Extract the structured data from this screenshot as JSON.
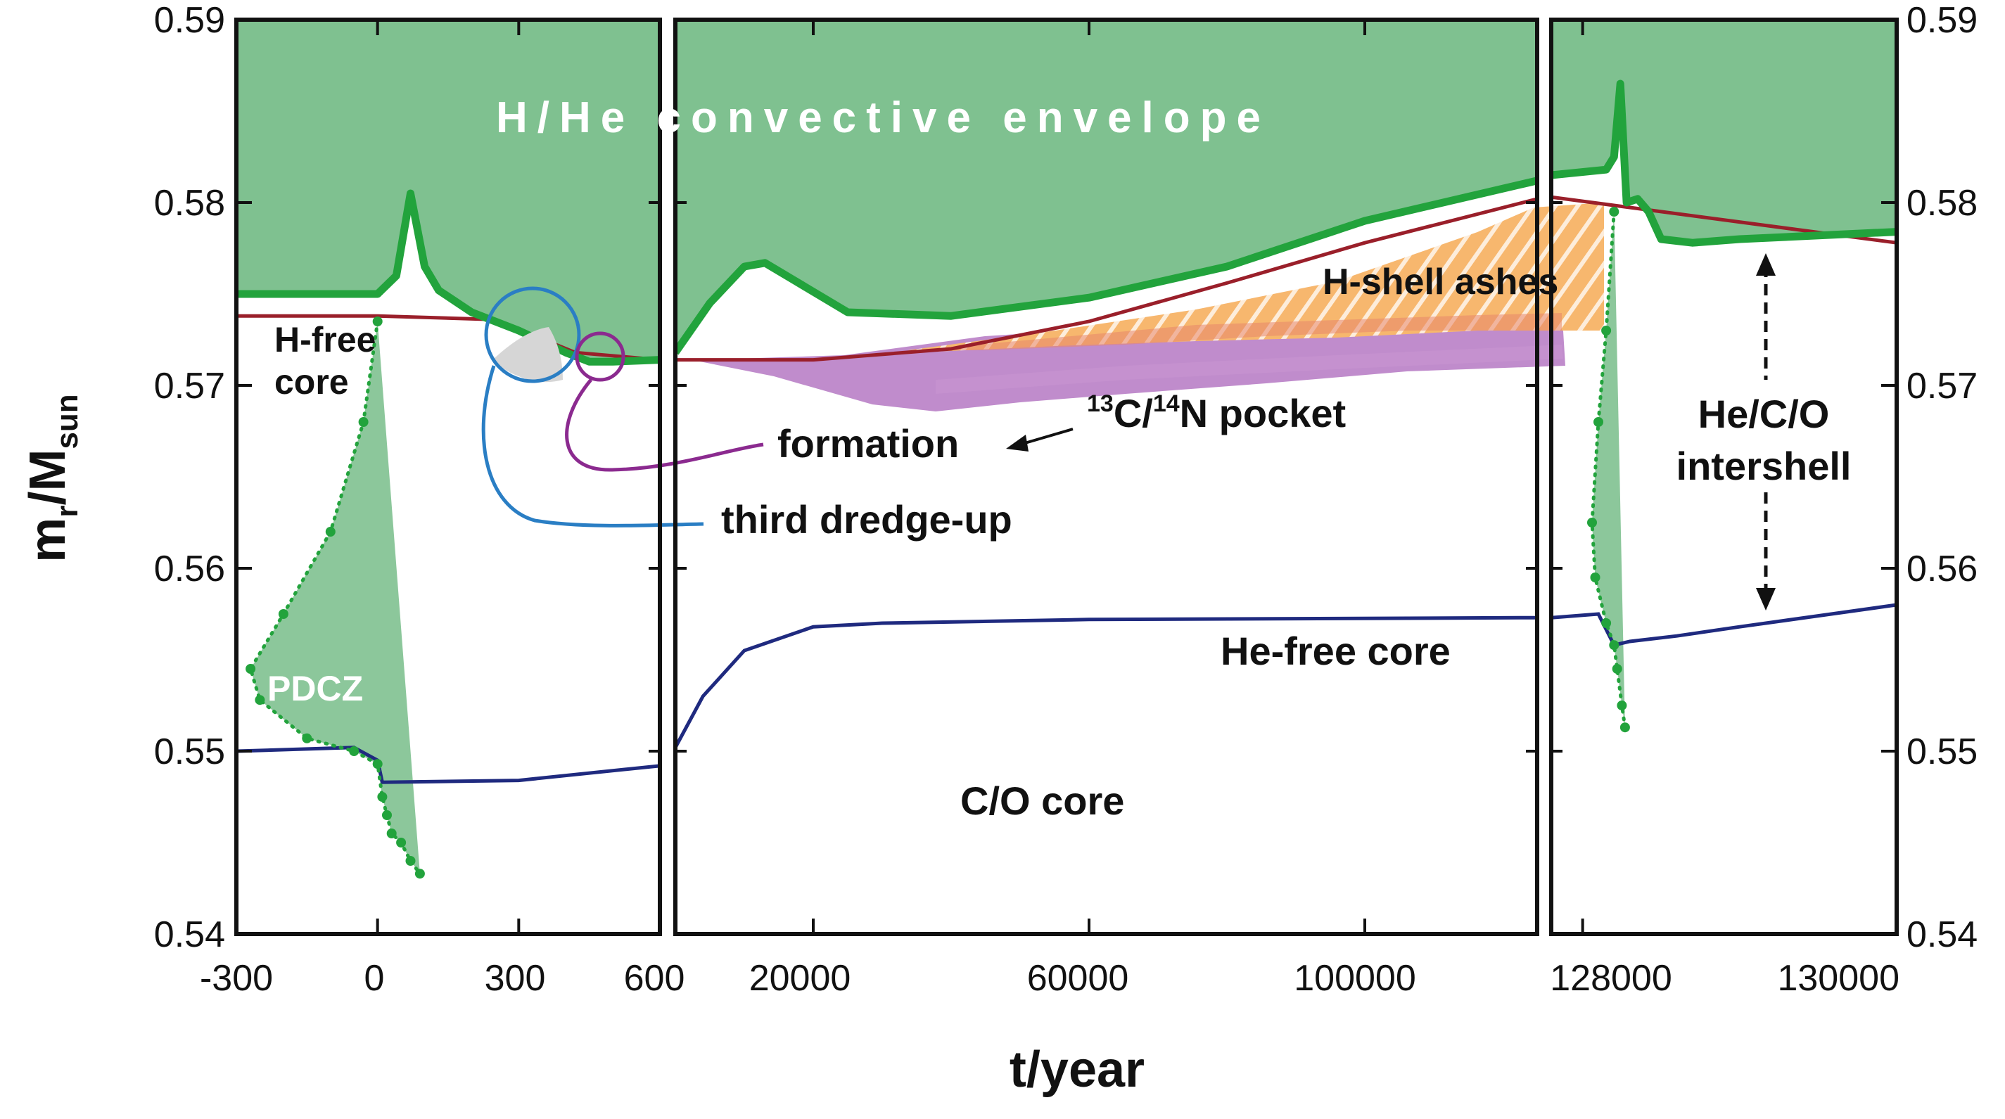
{
  "chart_data": {
    "type": "line",
    "xlabel": "t/year",
    "ylabel_main": "m",
    "ylabel_sub1": "r",
    "ylabel_mid": "/M",
    "ylabel_sub2": "sun",
    "ylim": [
      0.54,
      0.59
    ],
    "y_ticks": [
      "0.54",
      "0.55",
      "0.56",
      "0.57",
      "0.58",
      "0.59"
    ],
    "colors": {
      "envelope": "#7fc190",
      "convective_boundary": "#22a33c",
      "h_free_core": "#9a1f2a",
      "he_free_core": "#1f2a7f",
      "h_shell_ashes": "#f7b76e",
      "pocket": "#b980c6",
      "third_dredge_up": "#2a7ec4",
      "formation": "#8b2a8f"
    },
    "panels": [
      {
        "xlim": [
          -300,
          600
        ],
        "x_ticks": [
          "-300",
          "0",
          "300",
          "600"
        ],
        "series": [
          {
            "name": "H-free core",
            "x": [
              -300,
              0,
              250,
              420,
              600
            ],
            "y": [
              0.5738,
              0.5738,
              0.5736,
              0.5718,
              0.5714
            ]
          },
          {
            "name": "He-free core",
            "x": [
              -300,
              -50,
              0,
              10,
              300,
              600
            ],
            "y": [
              0.55,
              0.5502,
              0.5495,
              0.5483,
              0.5484,
              0.5492
            ]
          },
          {
            "name": "convective envelope boundary",
            "x": [
              -300,
              0,
              40,
              70,
              100,
              130,
              200,
              300,
              400,
              450,
              500,
              600
            ],
            "y": [
              0.575,
              0.575,
              0.576,
              0.5805,
              0.5765,
              0.5752,
              0.574,
              0.573,
              0.5718,
              0.5713,
              0.5713,
              0.5714
            ]
          },
          {
            "name": "PDCZ",
            "x": [
              0,
              -30,
              -100,
              -200,
              -270,
              -250,
              -150,
              -50,
              0,
              10,
              20,
              30,
              50,
              70,
              90
            ],
            "y": [
              0.5735,
              0.568,
              0.562,
              0.5575,
              0.5545,
              0.5528,
              0.5507,
              0.55,
              0.5493,
              0.5475,
              0.5465,
              0.5455,
              0.545,
              0.544,
              0.5433
            ]
          }
        ]
      },
      {
        "xlim": [
          0,
          125000
        ],
        "x_ticks": [
          "20000",
          "60000",
          "100000"
        ],
        "series": [
          {
            "name": "H-free core",
            "x": [
              0,
              20000,
              40000,
              60000,
              80000,
              100000,
              125000
            ],
            "y": [
              0.5714,
              0.5714,
              0.572,
              0.5735,
              0.5756,
              0.5778,
              0.5802
            ]
          },
          {
            "name": "He-free core",
            "x": [
              0,
              4000,
              10000,
              20000,
              30000,
              60000,
              125000
            ],
            "y": [
              0.5502,
              0.553,
              0.5555,
              0.5568,
              0.557,
              0.5572,
              0.5573
            ]
          },
          {
            "name": "convective envelope boundary",
            "x": [
              0,
              5000,
              10000,
              13000,
              17000,
              25000,
              40000,
              60000,
              80000,
              100000,
              125000
            ],
            "y": [
              0.5718,
              0.5745,
              0.5765,
              0.5767,
              0.5758,
              0.574,
              0.5738,
              0.5748,
              0.5765,
              0.579,
              0.5812
            ]
          }
        ]
      },
      {
        "xlim": [
          127800,
          130000
        ],
        "x_ticks": [
          "128000",
          "130000"
        ],
        "series": [
          {
            "name": "H-free core",
            "x": [
              127800,
              130000
            ],
            "y": [
              0.5803,
              0.5778
            ]
          },
          {
            "name": "He-free core",
            "x": [
              127800,
              128100,
              128200,
              128300,
              128600,
              129000,
              129500,
              130000
            ],
            "y": [
              0.5573,
              0.5575,
              0.5558,
              0.556,
              0.5563,
              0.5568,
              0.5574,
              0.558
            ]
          },
          {
            "name": "convective envelope boundary",
            "x": [
              127800,
              128150,
              128200,
              128240,
              128280,
              128350,
              128420,
              128500,
              128700,
              129000,
              130000
            ],
            "y": [
              0.5815,
              0.5818,
              0.5825,
              0.5865,
              0.58,
              0.5802,
              0.5795,
              0.578,
              0.5778,
              0.578,
              0.5784
            ]
          },
          {
            "name": "PDCZ",
            "x": [
              128200,
              128150,
              128100,
              128060,
              128080,
              128150,
              128200,
              128220,
              128250,
              128270
            ],
            "y": [
              0.5795,
              0.573,
              0.568,
              0.5625,
              0.5595,
              0.557,
              0.5558,
              0.5545,
              0.5525,
              0.5513
            ]
          }
        ]
      }
    ],
    "annotations": {
      "envelope": "H/He convective envelope",
      "h_free_core_1": "H-free",
      "h_free_core_2": "core",
      "pdcz": "PDCZ",
      "formation": "formation",
      "third_dredge_up": "third dredge-up",
      "pocket_sup1": "13",
      "pocket_c": "C/",
      "pocket_sup2": "14",
      "pocket_n": "N pocket",
      "h_shell_ashes": "H-shell ashes",
      "he_free_core": "He-free core",
      "co_core": "C/O core",
      "intershell_1": "He/C/O",
      "intershell_2": "intershell"
    }
  }
}
